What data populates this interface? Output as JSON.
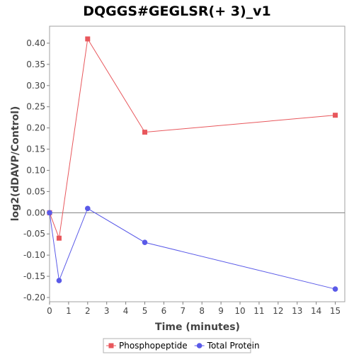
{
  "chart_data": {
    "type": "line",
    "title": "DQGGS#GEGLSR(+ 3)_v1",
    "xlabel": "Time (minutes)",
    "ylabel": "log2(dDAVP/Control)",
    "xlim": [
      0,
      15.5
    ],
    "ylim": [
      -0.21,
      0.44
    ],
    "x_ticks": [
      0,
      1,
      2,
      3,
      4,
      5,
      6,
      7,
      8,
      9,
      10,
      11,
      12,
      13,
      14,
      15
    ],
    "y_ticks": [
      -0.2,
      -0.15,
      -0.1,
      -0.05,
      0.0,
      0.05,
      0.1,
      0.15,
      0.2,
      0.25,
      0.3,
      0.35,
      0.4
    ],
    "x_tick_labels": [
      "0",
      "1",
      "2",
      "3",
      "4",
      "5",
      "6",
      "7",
      "8",
      "9",
      "10",
      "11",
      "12",
      "13",
      "14",
      "15"
    ],
    "y_tick_labels": [
      "-0.20",
      "-0.15",
      "-0.10",
      "-0.05",
      "0.00",
      "0.05",
      "0.10",
      "0.15",
      "0.20",
      "0.25",
      "0.30",
      "0.35",
      "0.40"
    ],
    "grid": false,
    "zero_line": true,
    "legend_position": "bottom",
    "series": [
      {
        "name": "Phosphopeptide",
        "color": "#e8575c",
        "marker": "square",
        "x": [
          0,
          0.5,
          2,
          5,
          15
        ],
        "values": [
          0.0,
          -0.06,
          0.41,
          0.19,
          0.23
        ]
      },
      {
        "name": "Total Protein",
        "color": "#5a5ae8",
        "marker": "circle",
        "x": [
          0,
          0.5,
          2,
          5,
          15
        ],
        "values": [
          0.0,
          -0.16,
          0.01,
          -0.07,
          -0.18
        ]
      }
    ]
  }
}
